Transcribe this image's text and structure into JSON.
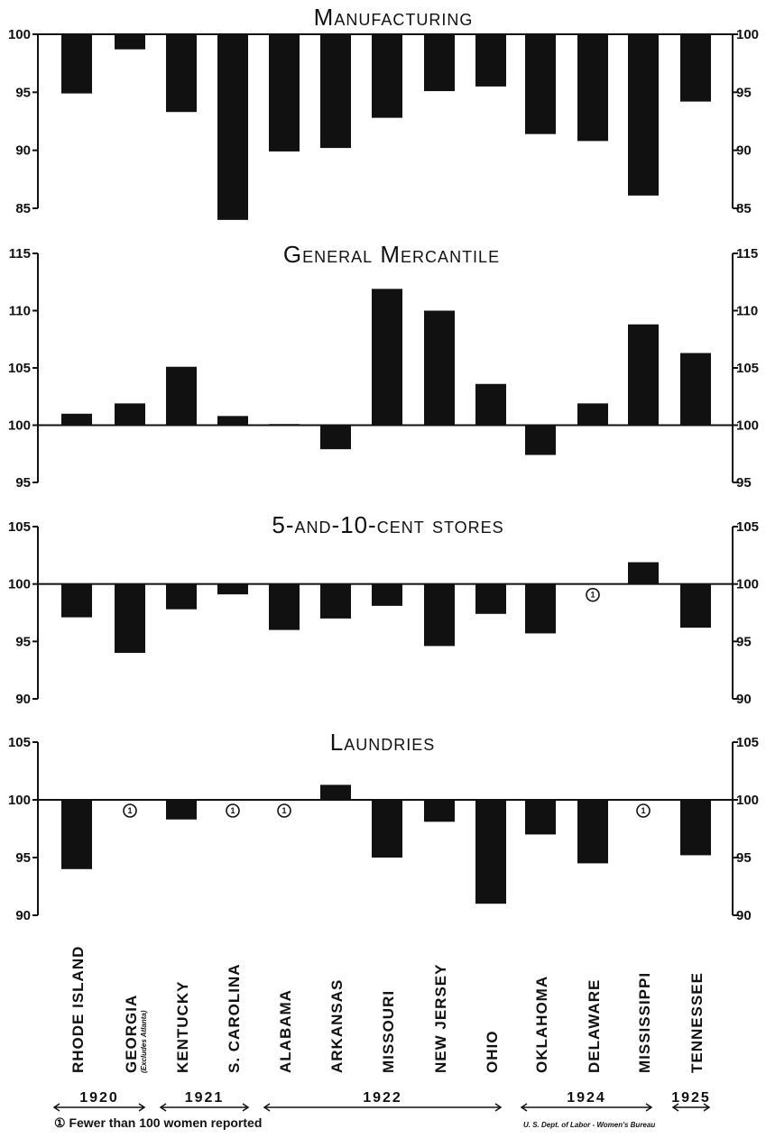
{
  "chart_data": [
    {
      "type": "bar",
      "title": "Manufacturing",
      "ylim": [
        85,
        100
      ],
      "yticks": [
        "100",
        "95",
        "90",
        "85"
      ],
      "base": 100,
      "categories": [
        "Rhode Island",
        "Georgia",
        "Kentucky",
        "S. Carolina",
        "Alabama",
        "Arkansas",
        "Missouri",
        "New Jersey",
        "Ohio",
        "Oklahoma",
        "Delaware",
        "Mississippi",
        "Tennessee"
      ],
      "values": [
        94.9,
        98.7,
        93.3,
        84.0,
        89.9,
        90.2,
        92.8,
        95.1,
        95.5,
        91.4,
        90.8,
        86.1,
        94.2
      ]
    },
    {
      "type": "bar",
      "title": "General Mercantile",
      "ylim": [
        95,
        115
      ],
      "yticks": [
        "115",
        "110",
        "105",
        "100",
        "95"
      ],
      "base": 100,
      "categories": [
        "Rhode Island",
        "Georgia",
        "Kentucky",
        "S. Carolina",
        "Alabama",
        "Arkansas",
        "Missouri",
        "New Jersey",
        "Ohio",
        "Oklahoma",
        "Delaware",
        "Mississippi",
        "Tennessee"
      ],
      "values": [
        101.0,
        101.9,
        105.1,
        100.8,
        100.1,
        97.9,
        111.9,
        110.0,
        103.6,
        97.4,
        101.9,
        108.8,
        106.3
      ]
    },
    {
      "type": "bar",
      "title": "5-and-10-cent stores",
      "ylim": [
        90,
        105
      ],
      "yticks": [
        "105",
        "100",
        "95",
        "90"
      ],
      "base": 100,
      "categories": [
        "Rhode Island",
        "Georgia",
        "Kentucky",
        "S. Carolina",
        "Alabama",
        "Arkansas",
        "Missouri",
        "New Jersey",
        "Ohio",
        "Oklahoma",
        "Delaware",
        "Mississippi",
        "Tennessee"
      ],
      "values": [
        97.1,
        94.0,
        97.8,
        99.1,
        96.0,
        97.0,
        98.1,
        94.6,
        97.4,
        95.7,
        null,
        101.9,
        96.2
      ],
      "few_reported": [
        "Delaware"
      ]
    },
    {
      "type": "bar",
      "title": "Laundries",
      "ylim": [
        90,
        105
      ],
      "yticks": [
        "105",
        "100",
        "95",
        "90"
      ],
      "base": 100,
      "categories": [
        "Rhode Island",
        "Georgia",
        "Kentucky",
        "S. Carolina",
        "Alabama",
        "Arkansas",
        "Missouri",
        "New Jersey",
        "Ohio",
        "Oklahoma",
        "Delaware",
        "Mississippi",
        "Tennessee"
      ],
      "values": [
        94.0,
        null,
        98.3,
        null,
        null,
        101.3,
        95.0,
        98.1,
        91.0,
        97.0,
        94.5,
        null,
        95.2
      ],
      "few_reported": [
        "Georgia",
        "S. Carolina",
        "Alabama",
        "Mississippi"
      ]
    }
  ],
  "panel_titles": [
    "Manufacturing",
    "General Mercantile",
    "5-and-10-cent stores",
    "Laundries"
  ],
  "state_labels": [
    "RHODE ISLAND",
    "GEORGIA",
    "KENTUCKY",
    "S. CAROLINA",
    "ALABAMA",
    "ARKANSAS",
    "MISSOURI",
    "NEW JERSEY",
    "OHIO",
    "OKLAHOMA",
    "DELAWARE",
    "MISSISSIPPI",
    "TENNESSEE"
  ],
  "georgia_subnote": "(Excludes Atlanta)",
  "marker_symbol": "①",
  "years": [
    {
      "label": "1920"
    },
    {
      "label": "1921"
    },
    {
      "label": "1922"
    },
    {
      "label": "1924"
    },
    {
      "label": "1925"
    }
  ],
  "footnote": "① Fewer than 100 women reported",
  "credit": "U. S. Dept. of Labor - Women's Bureau",
  "colors": {
    "bars": "#111111",
    "background": "#ffffff"
  }
}
